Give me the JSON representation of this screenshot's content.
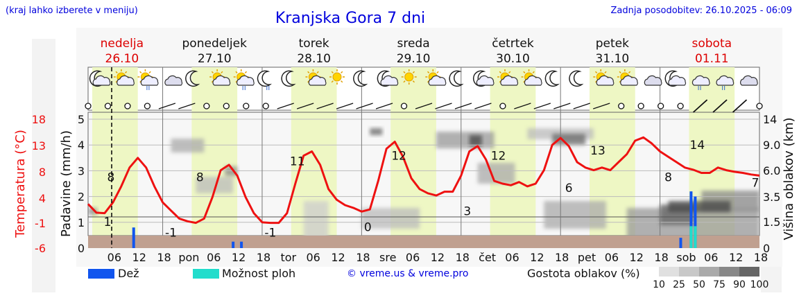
{
  "header": {
    "left_note": "(kraj lahko izberete v meniju)",
    "title": "Kranjska Gora 7 dni",
    "right_note": "Zadnja posodobitev: 26.10.2025 - 06:09"
  },
  "colors": {
    "temperature": "#ee1111",
    "title": "#0000dd",
    "rain": "#1155ee",
    "storm": "#22ddcc",
    "daylight": "#eef7c4",
    "ground": "#c0a090",
    "weekend_label": "#dd0000"
  },
  "chart_data": {
    "type": "line",
    "title": "Kranjska Gora 7 dni",
    "days": [
      {
        "name": "nedelja",
        "date": "26.10",
        "weekend": true
      },
      {
        "name": "ponedeljek",
        "date": "27.10",
        "weekend": false
      },
      {
        "name": "torek",
        "date": "28.10",
        "weekend": false
      },
      {
        "name": "sreda",
        "date": "29.10",
        "weekend": false
      },
      {
        "name": "četrtek",
        "date": "30.10",
        "weekend": false
      },
      {
        "name": "petek",
        "date": "31.10",
        "weekend": false
      },
      {
        "name": "sobota",
        "date": "01.11",
        "weekend": true
      }
    ],
    "x_ticks": [
      "06",
      "12",
      "18",
      "pon",
      "06",
      "12",
      "18",
      "tor",
      "06",
      "12",
      "18",
      "sre",
      "06",
      "12",
      "18",
      "čet",
      "06",
      "12",
      "18",
      "pet",
      "06",
      "12",
      "18",
      "sob",
      "06",
      "12",
      "18"
    ],
    "x_range_hours": [
      0,
      162
    ],
    "left_axis_precip": {
      "label": "Padavine (mm/h)",
      "ticks": [
        "0",
        "1",
        "2",
        "3",
        "4",
        "5"
      ],
      "range": [
        0,
        5
      ]
    },
    "left_axis_temp": {
      "label": "Temperatura (°C)",
      "ticks": [
        "-6",
        "-1",
        "4",
        "8",
        "13",
        "18"
      ],
      "range": [
        -6,
        18
      ]
    },
    "right_axis_cloud": {
      "label": "Višina oblakov (km)",
      "ticks": [
        "0",
        "1.5",
        "3.5",
        "6.0",
        "9.0",
        "14"
      ]
    },
    "temperature": {
      "name": "Temperatura",
      "x_hours": [
        0,
        2,
        4,
        6,
        8,
        10,
        12,
        14,
        16,
        18,
        20,
        22,
        24,
        26,
        28,
        30,
        32,
        34,
        36,
        38,
        40,
        42,
        44,
        46,
        48,
        50,
        52,
        54,
        56,
        58,
        60,
        62,
        64,
        66,
        68,
        70,
        72,
        74,
        76,
        78,
        80,
        82,
        84,
        86,
        88,
        90,
        92,
        94,
        96,
        98,
        100,
        102,
        104,
        106,
        108,
        110,
        112,
        114,
        116,
        118,
        120,
        122,
        124,
        126,
        128,
        130,
        132,
        134,
        136,
        138,
        140,
        142,
        144,
        146,
        148,
        150,
        152,
        154,
        156,
        158,
        160,
        162
      ],
      "values": [
        2.2,
        0.6,
        0.5,
        2.5,
        5.5,
        9.0,
        10.8,
        9.0,
        5.5,
        2.5,
        1.0,
        -0.5,
        -1.0,
        -1.3,
        -0.5,
        3.5,
        8.5,
        9.5,
        7.5,
        3.5,
        0.5,
        -1.2,
        -1.3,
        -1.3,
        0.5,
        6.0,
        11.2,
        12.0,
        9.5,
        5.0,
        3.0,
        2.0,
        1.5,
        0.8,
        1.2,
        6.5,
        12.5,
        13.8,
        11.0,
        7.0,
        5.0,
        4.2,
        3.8,
        4.5,
        4.5,
        7.5,
        12.0,
        13.0,
        10.5,
        6.5,
        6.0,
        5.7,
        6.3,
        5.5,
        6.0,
        8.5,
        13.2,
        14.5,
        13.0,
        10.0,
        9.0,
        8.5,
        9.0,
        8.5,
        10.0,
        11.5,
        14.0,
        14.6,
        13.5,
        12.0,
        11.0,
        10.0,
        9.0,
        8.6,
        8.0,
        8.0,
        9.0,
        8.5,
        8.2,
        8.0,
        7.7,
        7.5
      ],
      "labels": [
        {
          "x_hours": 0,
          "value": 1,
          "text": "1"
        },
        {
          "x_hours": 5.5,
          "value": 8,
          "text": "8"
        },
        {
          "x_hours": 20,
          "value": -1,
          "text": "-1"
        },
        {
          "x_hours": 27,
          "value": 8,
          "text": "8"
        },
        {
          "x_hours": 44,
          "value": -1,
          "text": "-1"
        },
        {
          "x_hours": 50.5,
          "value": 11,
          "text": "11"
        },
        {
          "x_hours": 67.5,
          "value": 0,
          "text": "0"
        },
        {
          "x_hours": 75,
          "value": 12,
          "text": "12"
        },
        {
          "x_hours": 91.5,
          "value": 3,
          "text": "3"
        },
        {
          "x_hours": 99,
          "value": 12,
          "text": "12"
        },
        {
          "x_hours": 116,
          "value": 6,
          "text": "6"
        },
        {
          "x_hours": 123,
          "value": 13,
          "text": "13"
        },
        {
          "x_hours": 140,
          "value": 8,
          "text": "8"
        },
        {
          "x_hours": 147,
          "value": 14,
          "text": "14"
        },
        {
          "x_hours": 161,
          "value": 7,
          "text": "7"
        }
      ]
    },
    "precipitation": {
      "rain_bars": [
        {
          "x_hours": 11,
          "value": 0.8
        },
        {
          "x_hours": 35,
          "value": 0.25
        },
        {
          "x_hours": 37,
          "value": 0.25
        },
        {
          "x_hours": 143,
          "value": 0.4
        },
        {
          "x_hours": 145.5,
          "value": 2.2
        },
        {
          "x_hours": 146.5,
          "value": 2.0
        }
      ],
      "storm_bars": [
        {
          "x_hours": 145.5,
          "value": 0.85
        },
        {
          "x_hours": 146.5,
          "value": 0.85
        }
      ]
    },
    "weather_symbols": [
      "moon-cloud",
      "sun-cloud",
      "sun-cloud-rain",
      "cloud",
      "moon",
      "sun-cloud",
      "sun-cloud-rain",
      "moon-rain",
      "moon",
      "sun-cloud",
      "sun",
      "moon",
      "moon-cloud",
      "sun",
      "sun-cloud",
      "moon",
      "moon-cloud",
      "sun-cloud",
      "sun-cloud",
      "moon",
      "moon",
      "sun-cloud",
      "sun-cloud",
      "cloud",
      "moon-cloud",
      "cloud-rain",
      "cloud-rain",
      "cloud"
    ],
    "wind_symbols": [
      "calm",
      "calm",
      "calm",
      "calm",
      "light",
      "light",
      "calm",
      "calm",
      "calm",
      "calm",
      "light",
      "light",
      "light",
      "light",
      "light",
      "light",
      "calm",
      "light",
      "light",
      "light",
      "light",
      "calm",
      "light",
      "light",
      "light",
      "light",
      "light",
      "calm",
      "calm",
      "calm",
      "calm",
      "strong",
      "strong",
      "strong",
      "calm"
    ],
    "legend": [
      {
        "name": "Dež",
        "color": "#1155ee"
      },
      {
        "name": "Možnost ploh",
        "color": "#22ddcc"
      }
    ],
    "cloud_density": {
      "label": "Gostota oblakov (%)",
      "ticks": [
        "10",
        "25",
        "50",
        "75",
        "90",
        "100"
      ]
    },
    "credit": "© vreme.us & vreme.pro"
  }
}
